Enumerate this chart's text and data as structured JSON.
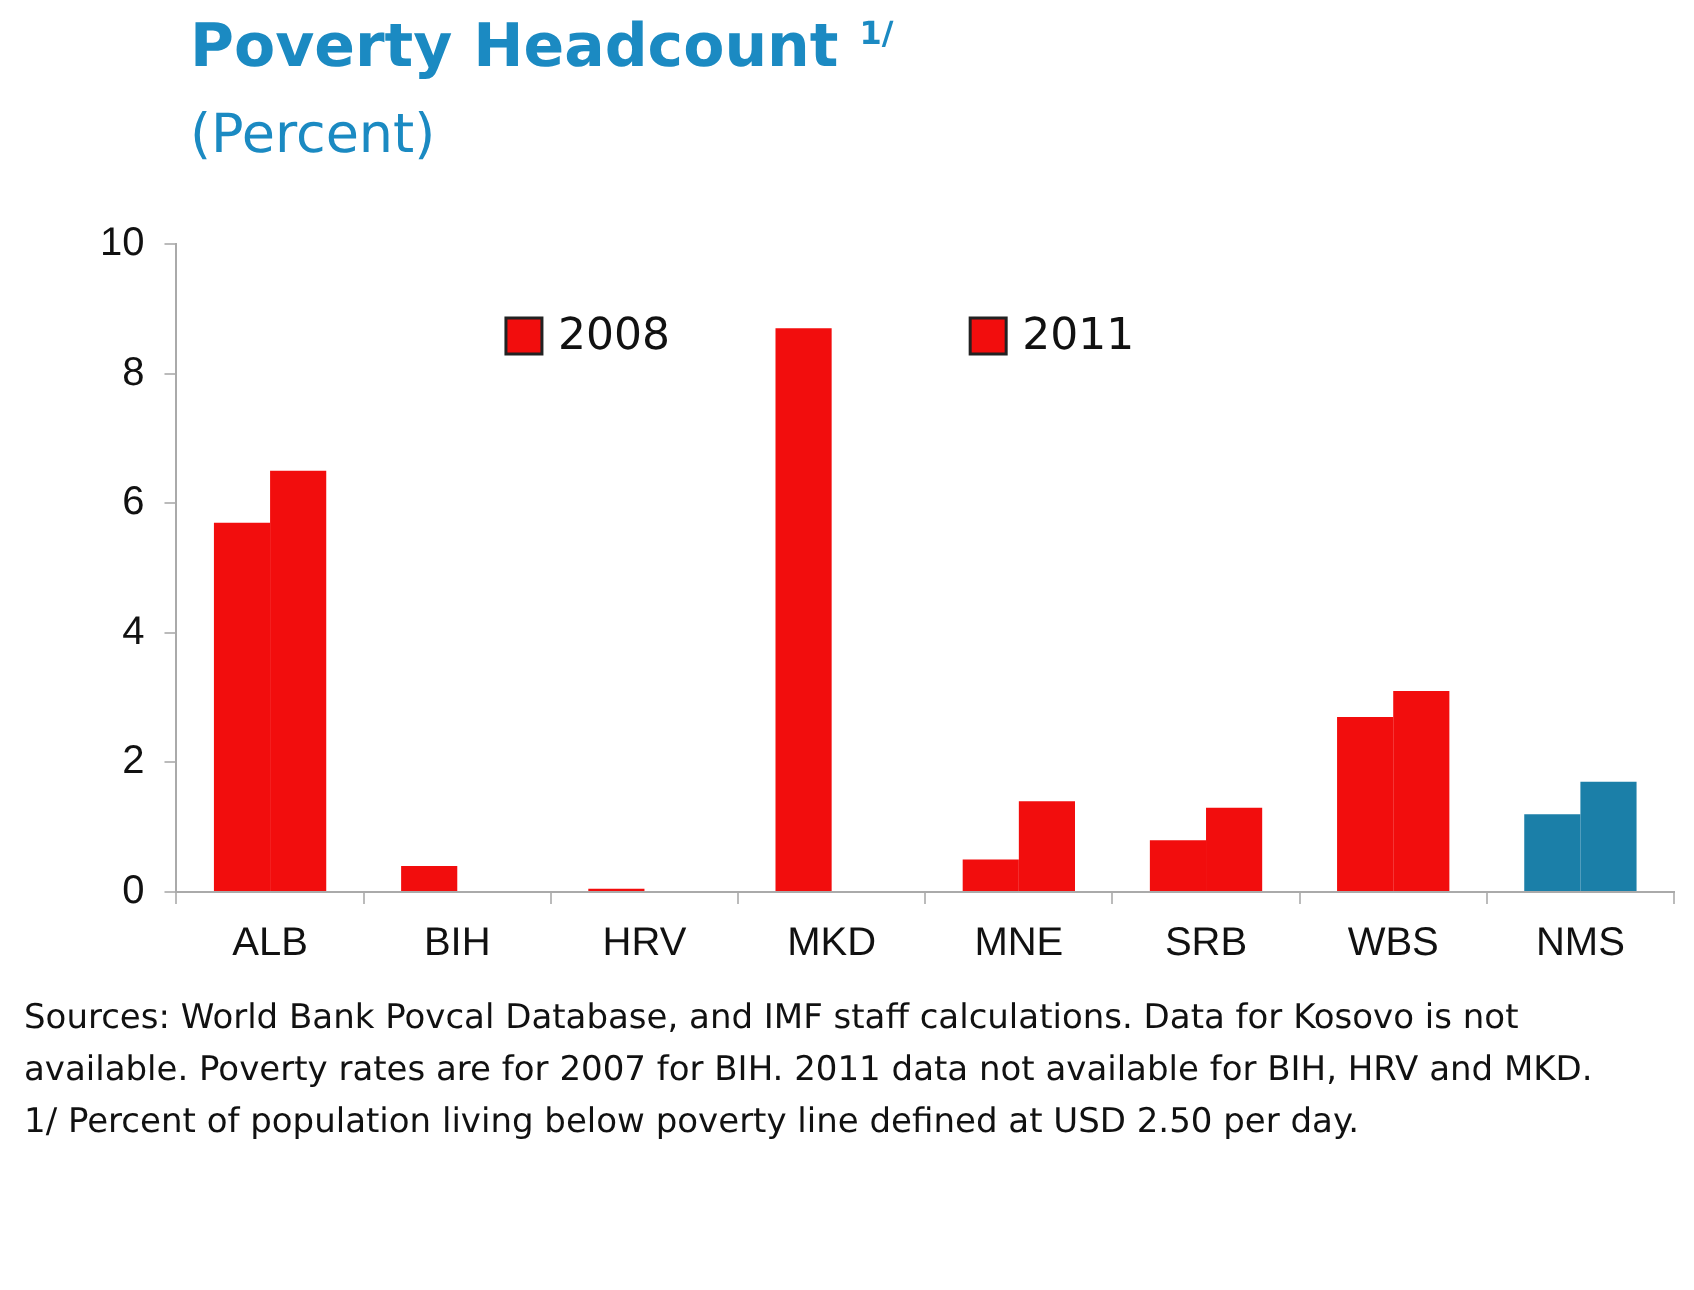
{
  "chart_data": {
    "type": "bar",
    "title": "Poverty Headcount $^{1/}$",
    "subtitle": "(Percent)",
    "categories": [
      "ALB",
      "BIH",
      "HRV",
      "MKD",
      "MNE",
      "SRB",
      "WBS",
      "NMS"
    ],
    "series": [
      {
        "name": "2008",
        "color": "#f20d0d",
        "colors": [
          "#f20d0d",
          "#f20d0d",
          "#f20d0d",
          "#f20d0d",
          "#f20d0d",
          "#f20d0d",
          "#f20d0d",
          "#1b7fa8"
        ],
        "values": [
          5.7,
          0.4,
          0.05,
          8.7,
          0.5,
          0.8,
          2.7,
          1.2
        ]
      },
      {
        "name": "2011",
        "color": "#f20d0d",
        "colors": [
          "#f20d0d",
          "#f20d0d",
          "#f20d0d",
          "#f20d0d",
          "#f20d0d",
          "#f20d0d",
          "#f20d0d",
          "#1b7fa8"
        ],
        "values": [
          6.5,
          null,
          null,
          null,
          1.4,
          1.3,
          3.1,
          1.7
        ]
      }
    ],
    "ylim": [
      0,
      10
    ],
    "yticks": [
      0,
      2,
      4,
      6,
      8,
      10
    ],
    "grid": false,
    "legend": "top",
    "annotations": [
      "Sources: World Bank Povcal Database, and IMF staff calculations. Data for Kosovo is not available. Poverty rates are for 2007 for BIH. 2011 data not available for BIH, HRV and MKD.",
      "1/ Percent of population living below poverty line defined at USD 2.50 per day."
    ]
  }
}
